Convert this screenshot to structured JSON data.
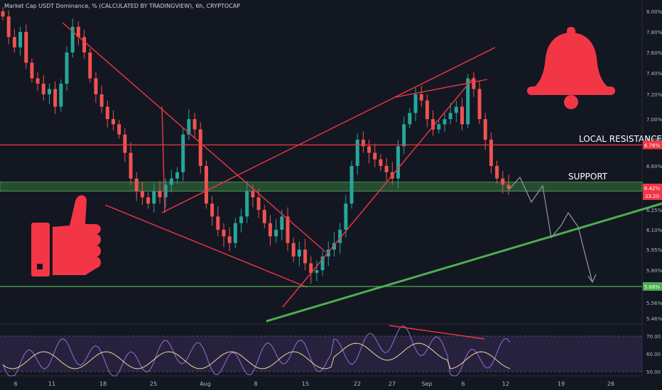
{
  "header": {
    "title": "Market Cap USDT Dominance, % (CALCULATED BY TRADINGVIEW), 6h, CRYPTOCAP"
  },
  "chart_data": {
    "type": "candlestick",
    "title": "Market Cap USDT Dominance, % (CALCULATED BY TRADINGVIEW), 6h, CRYPTOCAP",
    "y_unit": "%",
    "ylim": [
      5.4,
      8.05
    ],
    "y_ticks": [
      "8.00%",
      "7.80%",
      "7.60%",
      "7.40%",
      "7.20%",
      "7.00%",
      "6.80%",
      "6.60%",
      "6.25%",
      "6.10%",
      "5.95%",
      "5.80%",
      "5.56%",
      "5.46%"
    ],
    "x_ticks": [
      "6",
      "11",
      "18",
      "25",
      "Aug",
      "8",
      "15",
      "22",
      "27",
      "Sep",
      "6",
      "12",
      "19",
      "26"
    ],
    "annotations": {
      "resistance_label": "LOCAL RESISTANCE",
      "support_label": "SUPPORT"
    },
    "price_badges": {
      "resistance": "6.76%",
      "current_price": "6.42%",
      "countdown": "33:20",
      "support_low": "5.68%"
    },
    "levels": {
      "resistance": 6.76,
      "support_zone": [
        6.41,
        6.46
      ],
      "support_low": 5.68
    },
    "close_series": [
      7.95,
      7.75,
      7.65,
      7.8,
      7.5,
      7.35,
      7.3,
      7.2,
      7.25,
      7.1,
      7.3,
      7.6,
      7.85,
      7.75,
      7.6,
      7.35,
      7.2,
      7.1,
      7.0,
      6.95,
      6.85,
      6.7,
      6.5,
      6.4,
      6.35,
      6.3,
      6.4,
      6.35,
      6.45,
      6.5,
      6.55,
      6.85,
      7.0,
      6.9,
      6.6,
      6.3,
      6.2,
      6.1,
      6.05,
      6.0,
      6.15,
      6.2,
      6.4,
      6.35,
      6.25,
      6.15,
      6.05,
      6.1,
      6.2,
      6.0,
      5.9,
      5.95,
      5.85,
      5.78,
      5.8,
      5.9,
      5.95,
      6.0,
      6.1,
      6.3,
      6.6,
      6.8,
      6.75,
      6.7,
      6.65,
      6.6,
      6.55,
      6.5,
      6.75,
      6.95,
      7.05,
      7.2,
      7.15,
      7.0,
      6.9,
      6.95,
      7.0,
      7.05,
      7.1,
      6.95,
      7.35,
      7.25,
      7.0,
      6.8,
      6.6,
      6.5,
      6.45,
      6.42
    ],
    "rsi": {
      "y_ticks": [
        "70.00",
        "60.00",
        "50.00"
      ],
      "ylim": [
        45,
        80
      ],
      "overbought": 70,
      "oversold": 50
    },
    "legend": null,
    "grid": false
  },
  "icons": [
    "bell-icon",
    "thumbs-up-icon"
  ],
  "colors": {
    "background": "#131722",
    "candle_up": "#26a69a",
    "candle_down": "#ef5350",
    "trendline": "#f23645",
    "support_zone": "#4caf50",
    "rising_support": "#4caf50",
    "projection": "#9598a1",
    "rsi_line": "#9c6bd6",
    "rsi_ma": "#e8d8a0"
  }
}
